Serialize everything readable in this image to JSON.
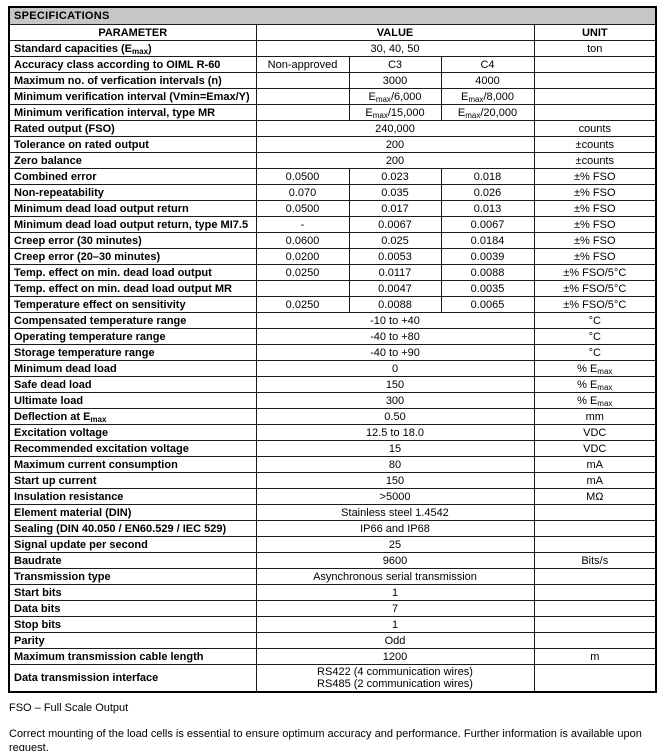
{
  "colors": {
    "title_bar_bg": "#c6c6c6",
    "border": "#000000",
    "text": "#000000",
    "page_bg": "#ffffff"
  },
  "table": {
    "title": "SPECIFICATIONS",
    "headers": {
      "parameter": "PARAMETER",
      "value": "VALUE",
      "unit": "UNIT"
    },
    "rows": [
      {
        "parameter": "Standard capacities (E{max})",
        "values": [
          "30, 40, 50"
        ],
        "unit": "ton"
      },
      {
        "parameter": "Accuracy class according to OIML R-60",
        "values": [
          "Non-approved",
          "C3",
          "C4"
        ],
        "unit": ""
      },
      {
        "parameter": "Maximum no. of verfication intervals (n)",
        "values": [
          "",
          "3000",
          "4000"
        ],
        "unit": ""
      },
      {
        "parameter": "Minimum verification interval (Vmin=Emax/Y)",
        "values": [
          "",
          "E{max}/6,000",
          "E{max}/8,000"
        ],
        "unit": ""
      },
      {
        "parameter": "Minimum verification interval, type MR",
        "values": [
          "",
          "E{max}/15,000",
          "E{max}/20,000"
        ],
        "unit": ""
      },
      {
        "parameter": "Rated output (FSO)",
        "values": [
          "240,000"
        ],
        "unit": "counts"
      },
      {
        "parameter": "Tolerance on rated output",
        "values": [
          "200"
        ],
        "unit": "±counts"
      },
      {
        "parameter": "Zero balance",
        "values": [
          "200"
        ],
        "unit": "±counts"
      },
      {
        "parameter": "Combined error",
        "values": [
          "0.0500",
          "0.023",
          "0.018"
        ],
        "unit": "±% FSO"
      },
      {
        "parameter": "Non-repeatability",
        "values": [
          "0.070",
          "0.035",
          "0.026"
        ],
        "unit": "±% FSO"
      },
      {
        "parameter": "Minimum dead load output return",
        "values": [
          "0.0500",
          "0.017",
          "0.013"
        ],
        "unit": "±% FSO"
      },
      {
        "parameter": "Minimum dead load output return, type MI7.5",
        "values": [
          "-",
          "0.0067",
          "0.0067"
        ],
        "unit": "±% FSO"
      },
      {
        "parameter": "Creep error (30 minutes)",
        "values": [
          "0.0600",
          "0.025",
          "0.0184"
        ],
        "unit": "±% FSO"
      },
      {
        "parameter": "Creep error (20–30 minutes)",
        "values": [
          "0.0200",
          "0.0053",
          "0.0039"
        ],
        "unit": "±% FSO"
      },
      {
        "parameter": "Temp. effect on min. dead load output",
        "values": [
          "0.0250",
          "0.0117",
          "0.0088"
        ],
        "unit": "±% FSO/5°C"
      },
      {
        "parameter": "Temp. effect on min. dead load output MR",
        "values": [
          "",
          "0.0047",
          "0.0035"
        ],
        "unit": "±% FSO/5°C"
      },
      {
        "parameter": "Temperature effect on sensitivity",
        "values": [
          "0.0250",
          "0.0088",
          "0.0065"
        ],
        "unit": "±% FSO/5°C"
      },
      {
        "parameter": "Compensated temperature range",
        "values": [
          "-10 to +40"
        ],
        "unit": "°C"
      },
      {
        "parameter": "Operating temperature range",
        "values": [
          "-40 to +80"
        ],
        "unit": "°C"
      },
      {
        "parameter": "Storage temperature range",
        "values": [
          "-40 to +90"
        ],
        "unit": "°C"
      },
      {
        "parameter": "Minimum dead load",
        "values": [
          "0"
        ],
        "unit": "% E{max}"
      },
      {
        "parameter": "Safe dead load",
        "values": [
          "150"
        ],
        "unit": "% E{max}"
      },
      {
        "parameter": "Ultimate load",
        "values": [
          "300"
        ],
        "unit": "% E{max}"
      },
      {
        "parameter": "Deflection at E{max}",
        "values": [
          "0.50"
        ],
        "unit": "mm"
      },
      {
        "parameter": "Excitation voltage",
        "values": [
          "12.5 to 18.0"
        ],
        "unit": "VDC"
      },
      {
        "parameter": "Recommended excitation voltage",
        "values": [
          "15"
        ],
        "unit": "VDC"
      },
      {
        "parameter": "Maximum current consumption",
        "values": [
          "80"
        ],
        "unit": "mA"
      },
      {
        "parameter": "Start up current",
        "values": [
          "150"
        ],
        "unit": "mA"
      },
      {
        "parameter": "Insulation resistance",
        "values": [
          ">5000"
        ],
        "unit": "MΩ"
      },
      {
        "parameter": "Element material (DIN)",
        "values": [
          "Stainless steel 1.4542"
        ],
        "unit": ""
      },
      {
        "parameter": "Sealing (DIN 40.050 / EN60.529 / IEC 529)",
        "values": [
          "IP66 and IP68"
        ],
        "unit": ""
      },
      {
        "parameter": "Signal update per second",
        "values": [
          "25"
        ],
        "unit": ""
      },
      {
        "parameter": "Baudrate",
        "values": [
          "9600"
        ],
        "unit": "Bits/s"
      },
      {
        "parameter": "Transmission type",
        "values": [
          "Asynchronous serial transmission"
        ],
        "unit": ""
      },
      {
        "parameter": "Start bits",
        "values": [
          "1"
        ],
        "unit": ""
      },
      {
        "parameter": "Data bits",
        "values": [
          "7"
        ],
        "unit": ""
      },
      {
        "parameter": "Stop bits",
        "values": [
          "1"
        ],
        "unit": ""
      },
      {
        "parameter": "Parity",
        "values": [
          "Odd"
        ],
        "unit": ""
      },
      {
        "parameter": "Maximum transmission cable length",
        "values": [
          "1200"
        ],
        "unit": "m"
      },
      {
        "parameter": "Data transmission interface",
        "values": [
          "RS422 (4 communication wires)\nRS485 (2 communication wires)"
        ],
        "unit": ""
      }
    ]
  },
  "footnote": "FSO – Full Scale Output",
  "note": "Correct mounting of the load cells is essential to ensure optimum accuracy and performance. Further information is available upon request."
}
